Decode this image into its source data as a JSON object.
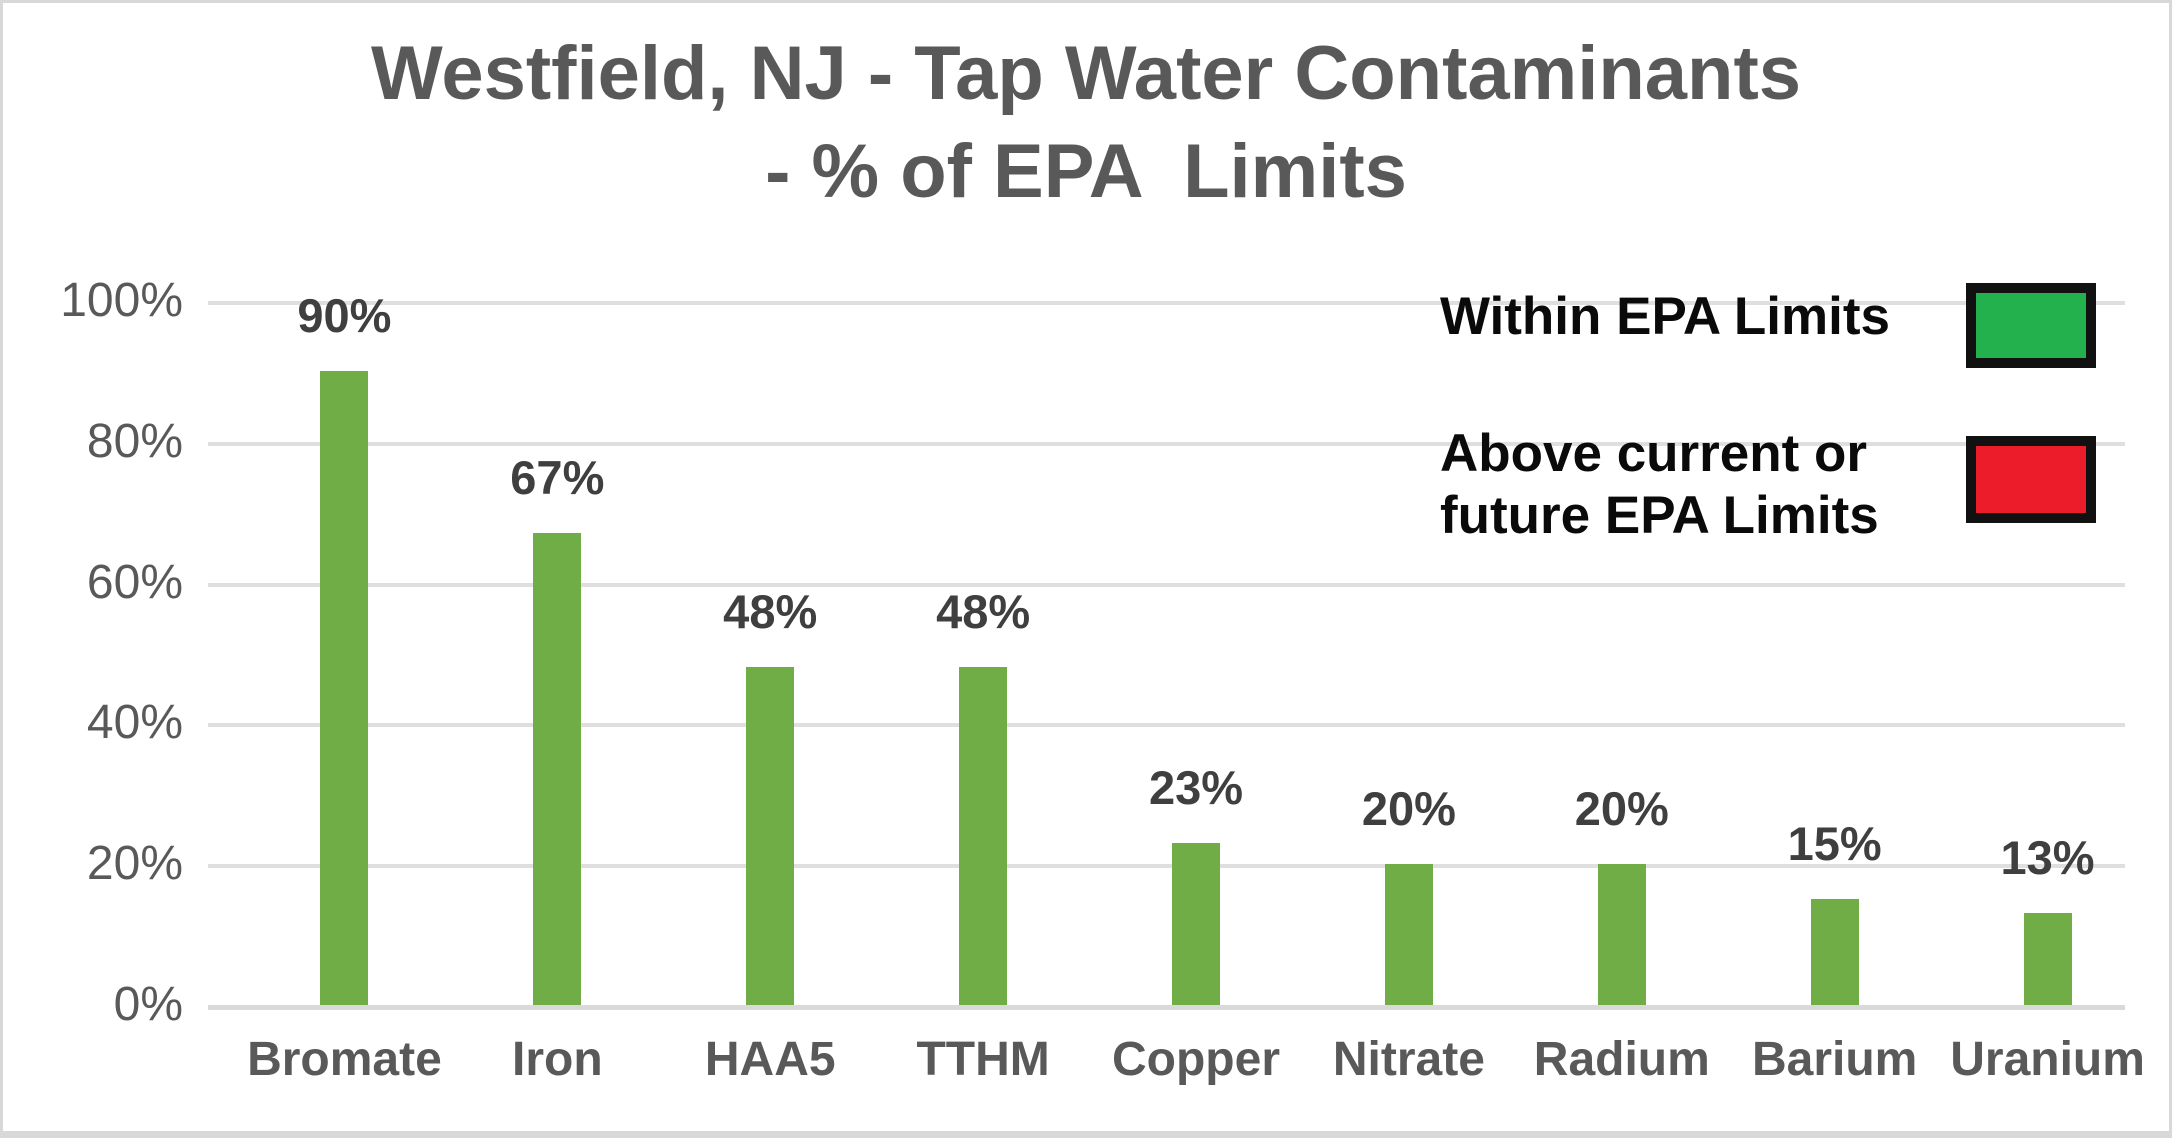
{
  "title": {
    "text": "Westfield, NJ - Tap Water Contaminants\n- % of EPA  Limits"
  },
  "legend": [
    {
      "label": "Within EPA Limits",
      "color": "#22B14C"
    },
    {
      "label": "Above current or\nfuture EPA Limits",
      "color": "#EC1C2B"
    }
  ],
  "chart_data": {
    "type": "bar",
    "title": "Westfield, NJ - Tap Water Contaminants - % of EPA Limits",
    "categories": [
      "Bromate",
      "Iron",
      "HAA5",
      "TTHM",
      "Copper",
      "Nitrate",
      "Radium",
      "Barium",
      "Uranium"
    ],
    "values": [
      90,
      67,
      48,
      48,
      23,
      20,
      20,
      15,
      13
    ],
    "value_labels": [
      "90%",
      "67%",
      "48%",
      "48%",
      "23%",
      "20%",
      "20%",
      "15%",
      "13%"
    ],
    "y_ticks": [
      "100%",
      "80%",
      "60%",
      "40%",
      "20%",
      "0%"
    ],
    "ylim": [
      0,
      100
    ],
    "xlabel": "",
    "ylabel": "",
    "grid": true,
    "bar_color": "#70AD47",
    "legend_position": "top-right",
    "text_color": "#595959"
  }
}
